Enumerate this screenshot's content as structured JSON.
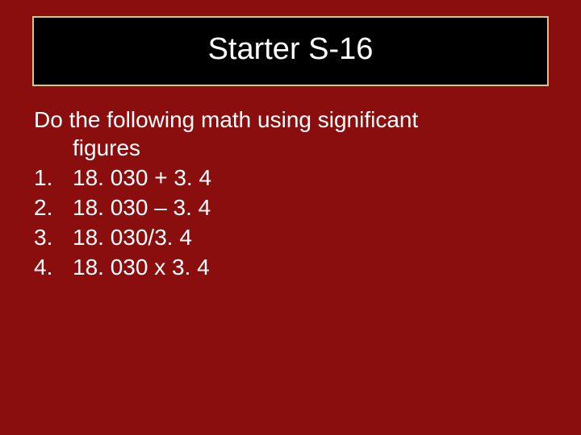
{
  "slide": {
    "background_color": "#8b0e0e",
    "title": {
      "text": "Starter S-16",
      "box_border_color": "#e0c080",
      "box_background_color": "#000000",
      "text_color": "#ffffff",
      "font_size_pt": 38
    },
    "content": {
      "text_color": "#ffffff",
      "font_size_pt": 28,
      "prompt_line1": "Do the following math using significant",
      "prompt_line2": "figures",
      "items": [
        {
          "number": "1.",
          "text": "18. 030 + 3. 4"
        },
        {
          "number": "2.",
          "text": "18. 030 – 3. 4"
        },
        {
          "number": "3.",
          "text": "18. 030/3. 4"
        },
        {
          "number": "4.",
          "text": "18. 030 x 3. 4"
        }
      ]
    }
  }
}
